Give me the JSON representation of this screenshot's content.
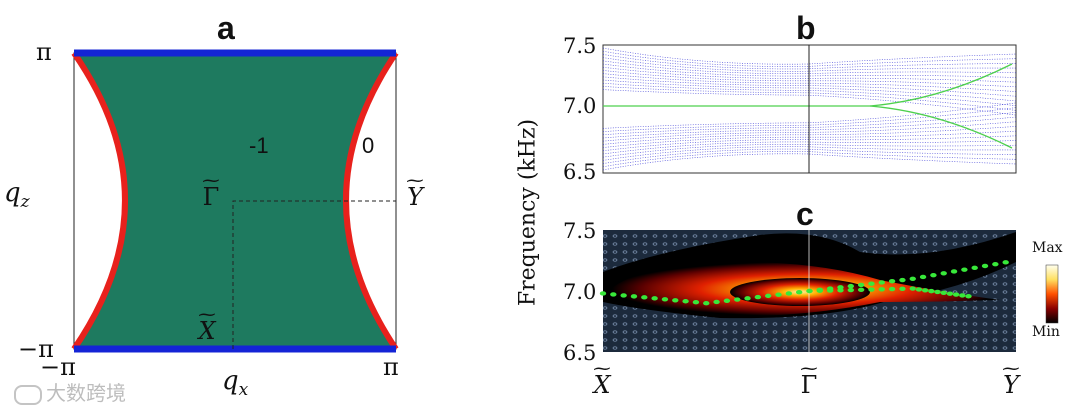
{
  "panel_a": {
    "letter": "a",
    "y_top": "π",
    "y_bottom": "−π",
    "x_left": "−π",
    "x_right": "π",
    "x_axis_label": "q",
    "x_axis_sub": "x",
    "y_axis_label": "q",
    "y_axis_sub": "z",
    "region_minus1": "-1",
    "region_0": "0",
    "point_gamma": "Γ",
    "point_x": "X",
    "point_y": "Y",
    "tilde": "~",
    "colors": {
      "fill": "#1e7a5f",
      "boundary_red": "#e8211c",
      "boundary_blue": "#1424d6"
    }
  },
  "panel_b": {
    "letter": "b",
    "yticks": [
      "7.5",
      "7.0",
      "6.5"
    ],
    "colors": {
      "bands": "#3b3bd6",
      "edge_mode": "#4ed04e",
      "divider": "#222222"
    }
  },
  "panel_c": {
    "letter": "c",
    "yticks": [
      "7.5",
      "7.0",
      "6.5"
    ],
    "colorbar_max": "Max",
    "colorbar_min": "Min",
    "colors": {
      "edge_mode": "#38e83a",
      "background": "#1c2a3c"
    }
  },
  "shared": {
    "ylabel": "Frequency (kHz)",
    "xticks": [
      "X",
      "Γ",
      "Y"
    ],
    "tilde": "~"
  },
  "watermark": "大数跨境",
  "chart_data": [
    {
      "type": "area",
      "title": "a",
      "xlabel": "q_x",
      "ylabel": "q_z",
      "xlim": [
        "−π",
        "π"
      ],
      "ylim": [
        "−π",
        "π"
      ],
      "regions": [
        {
          "label": "-1",
          "color": "#1e7a5f"
        },
        {
          "label": "0",
          "color": "#ffffff"
        }
      ],
      "points": [
        "Γ",
        "X",
        "Y"
      ]
    },
    {
      "type": "line",
      "title": "b",
      "ylabel": "Frequency (kHz)",
      "ylim": [
        6.5,
        7.5
      ],
      "categories": [
        "X",
        "Γ",
        "Y"
      ],
      "series": [
        {
          "name": "edge mode",
          "values": [
            7.02,
            7.02,
            7.02
          ]
        }
      ]
    },
    {
      "type": "heatmap",
      "title": "c",
      "ylabel": "Frequency (kHz)",
      "ylim": [
        6.5,
        7.5
      ],
      "categories": [
        "X",
        "Γ",
        "Y"
      ],
      "series": [
        {
          "name": "edge mode upper",
          "x": [
            0,
            0.25,
            0.5,
            0.75,
            1.0
          ],
          "values": [
            6.98,
            6.9,
            7.0,
            7.1,
            7.25
          ]
        },
        {
          "name": "edge mode lower",
          "x": [
            0.5,
            0.75,
            0.9
          ],
          "values": [
            7.0,
            7.02,
            6.95
          ]
        }
      ]
    }
  ]
}
